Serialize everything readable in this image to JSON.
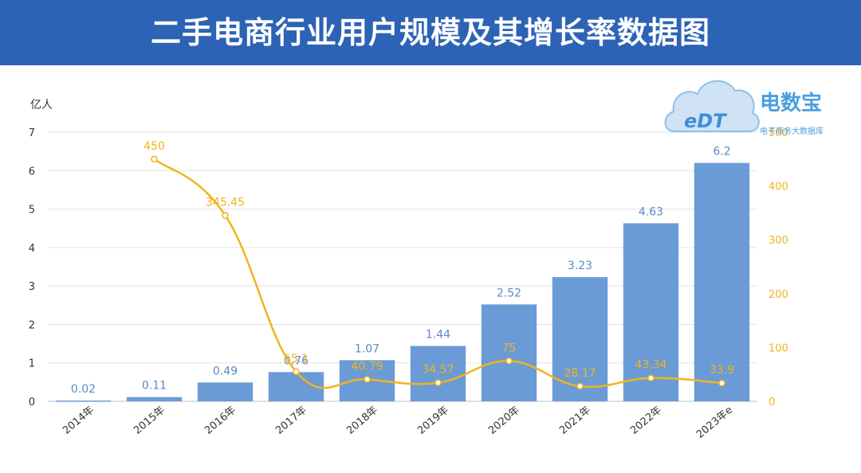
{
  "title": "二手电商行业用户规模及其增长率数据图",
  "logo": {
    "name": "电数宝",
    "subtitle": "电子商务大数据库",
    "mark": "eDT"
  },
  "colors": {
    "bar": "#6a9bd6",
    "line": "#f0b41c",
    "header": "#2d63b6",
    "barLabel": "#5b8ac6"
  },
  "chart_data": {
    "type": "bar",
    "categories": [
      "2014年",
      "2015年",
      "2016年",
      "2017年",
      "2018年",
      "2019年",
      "2020年",
      "2021年",
      "2022年",
      "2023年e"
    ],
    "series": [
      {
        "type": "bar",
        "axis": "left",
        "values": [
          0.02,
          0.11,
          0.49,
          0.76,
          1.07,
          1.44,
          2.52,
          3.23,
          4.63,
          6.2
        ],
        "labels": [
          "0.02",
          "0.11",
          "0.49",
          "0.76",
          "1.07",
          "1.44",
          "2.52",
          "3.23",
          "4.63",
          "6.2"
        ]
      },
      {
        "type": "line",
        "axis": "right",
        "values": [
          null,
          450,
          345.45,
          55.1,
          40.79,
          34.57,
          75,
          28.17,
          43.34,
          33.9
        ],
        "labels": [
          "",
          "450",
          "345.45",
          "55.1",
          "40.79",
          "34.57",
          "75",
          "28.17",
          "43.34",
          "33.9"
        ]
      }
    ],
    "ylabel": "亿人",
    "ylim": [
      0,
      7
    ],
    "yticks": [
      "0",
      "1",
      "2",
      "3",
      "4",
      "5",
      "6",
      "7"
    ],
    "y2lim": [
      0,
      500
    ],
    "y2ticks": [
      "0",
      "100",
      "200",
      "300",
      "400",
      "500"
    ],
    "grid": true
  }
}
